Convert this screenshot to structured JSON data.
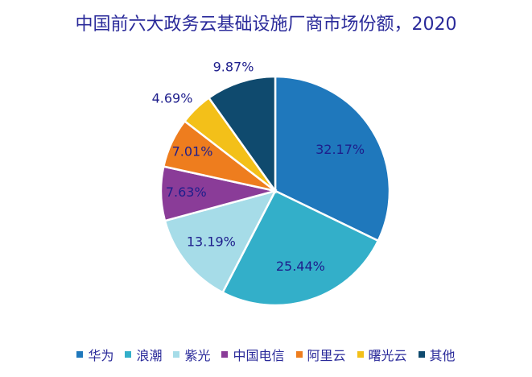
{
  "chart_data": {
    "type": "pie",
    "title": "中国前六大政务云基础设施厂商市场份额，2020",
    "categories": [
      "华为",
      "浪潮",
      "紫光",
      "中国电信",
      "阿里云",
      "曙光云",
      "其他"
    ],
    "values": [
      32.17,
      25.44,
      13.19,
      7.63,
      7.01,
      4.69,
      9.87
    ],
    "labels": [
      "32.17%",
      "25.44%",
      "13.19%",
      "7.63%",
      "7.01%",
      "4.69%",
      "9.87%"
    ],
    "colors": [
      "#1f78bc",
      "#33afc9",
      "#a6dce8",
      "#8a3c98",
      "#ee7d1e",
      "#f3c019",
      "#0f4a6e"
    ],
    "label_color": "#1e1e8c",
    "legend_position": "bottom",
    "start": "top, clockwise"
  }
}
